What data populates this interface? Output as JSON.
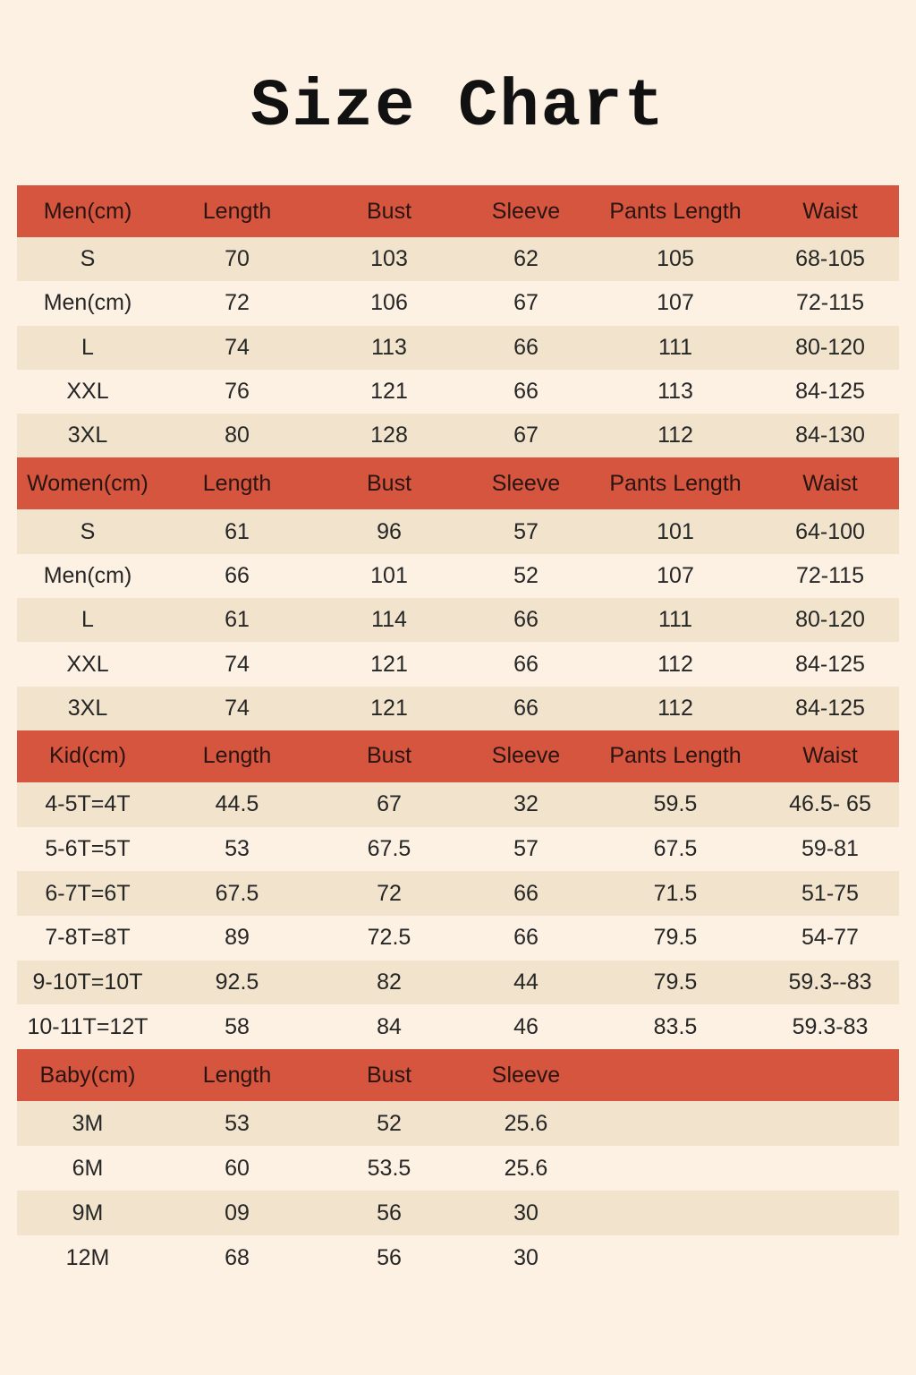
{
  "title": "Size Chart",
  "colors": {
    "background": "#fcf1e2",
    "header": "#d5553f",
    "stripe": "#f1e3cc"
  },
  "sections": [
    {
      "headers": [
        "Men(cm)",
        "Length",
        "Bust",
        "Sleeve",
        "Pants Length",
        "Waist"
      ],
      "rows": [
        [
          "S",
          "70",
          "103",
          "62",
          "105",
          "68-105"
        ],
        [
          "Men(cm)",
          "72",
          "106",
          "67",
          "107",
          "72-115"
        ],
        [
          "L",
          "74",
          "113",
          "66",
          "111",
          "80-120"
        ],
        [
          "XXL",
          "76",
          "121",
          "66",
          "113",
          "84-125"
        ],
        [
          "3XL",
          "80",
          "128",
          "67",
          "112",
          "84-130"
        ]
      ]
    },
    {
      "headers": [
        "Women(cm)",
        "Length",
        "Bust",
        "Sleeve",
        "Pants Length",
        "Waist"
      ],
      "rows": [
        [
          "S",
          "61",
          "96",
          "57",
          "101",
          "64-100"
        ],
        [
          "Men(cm)",
          "66",
          "101",
          "52",
          "107",
          "72-115"
        ],
        [
          "L",
          "61",
          "114",
          "66",
          "111",
          "80-120"
        ],
        [
          "XXL",
          "74",
          "121",
          "66",
          "112",
          "84-125"
        ],
        [
          "3XL",
          "74",
          "121",
          "66",
          "112",
          "84-125"
        ]
      ]
    },
    {
      "headers": [
        "Kid(cm)",
        "Length",
        "Bust",
        "Sleeve",
        "Pants Length",
        "Waist"
      ],
      "rows": [
        [
          "4-5T=4T",
          "44.5",
          "67",
          "32",
          "59.5",
          "46.5- 65"
        ],
        [
          "5-6T=5T",
          "53",
          "67.5",
          "57",
          "67.5",
          "59-81"
        ],
        [
          "6-7T=6T",
          "67.5",
          "72",
          "66",
          "71.5",
          "51-75"
        ],
        [
          "7-8T=8T",
          "89",
          "72.5",
          "66",
          "79.5",
          "54-77"
        ],
        [
          "9-10T=10T",
          "92.5",
          "82",
          "44",
          "79.5",
          "59.3--83"
        ],
        [
          "10-11T=12T",
          "58",
          "84",
          "46",
          "83.5",
          "59.3-83"
        ]
      ]
    },
    {
      "headers": [
        "Baby(cm)",
        "Length",
        "Bust",
        "Sleeve",
        "",
        ""
      ],
      "rows": [
        [
          "3M",
          "53",
          "52",
          "25.6",
          "",
          ""
        ],
        [
          "6M",
          "60",
          "53.5",
          "25.6",
          "",
          ""
        ],
        [
          "9M",
          "09",
          "56",
          "30",
          "",
          ""
        ],
        [
          "12M",
          "68",
          "56",
          "30",
          "",
          ""
        ]
      ]
    }
  ]
}
